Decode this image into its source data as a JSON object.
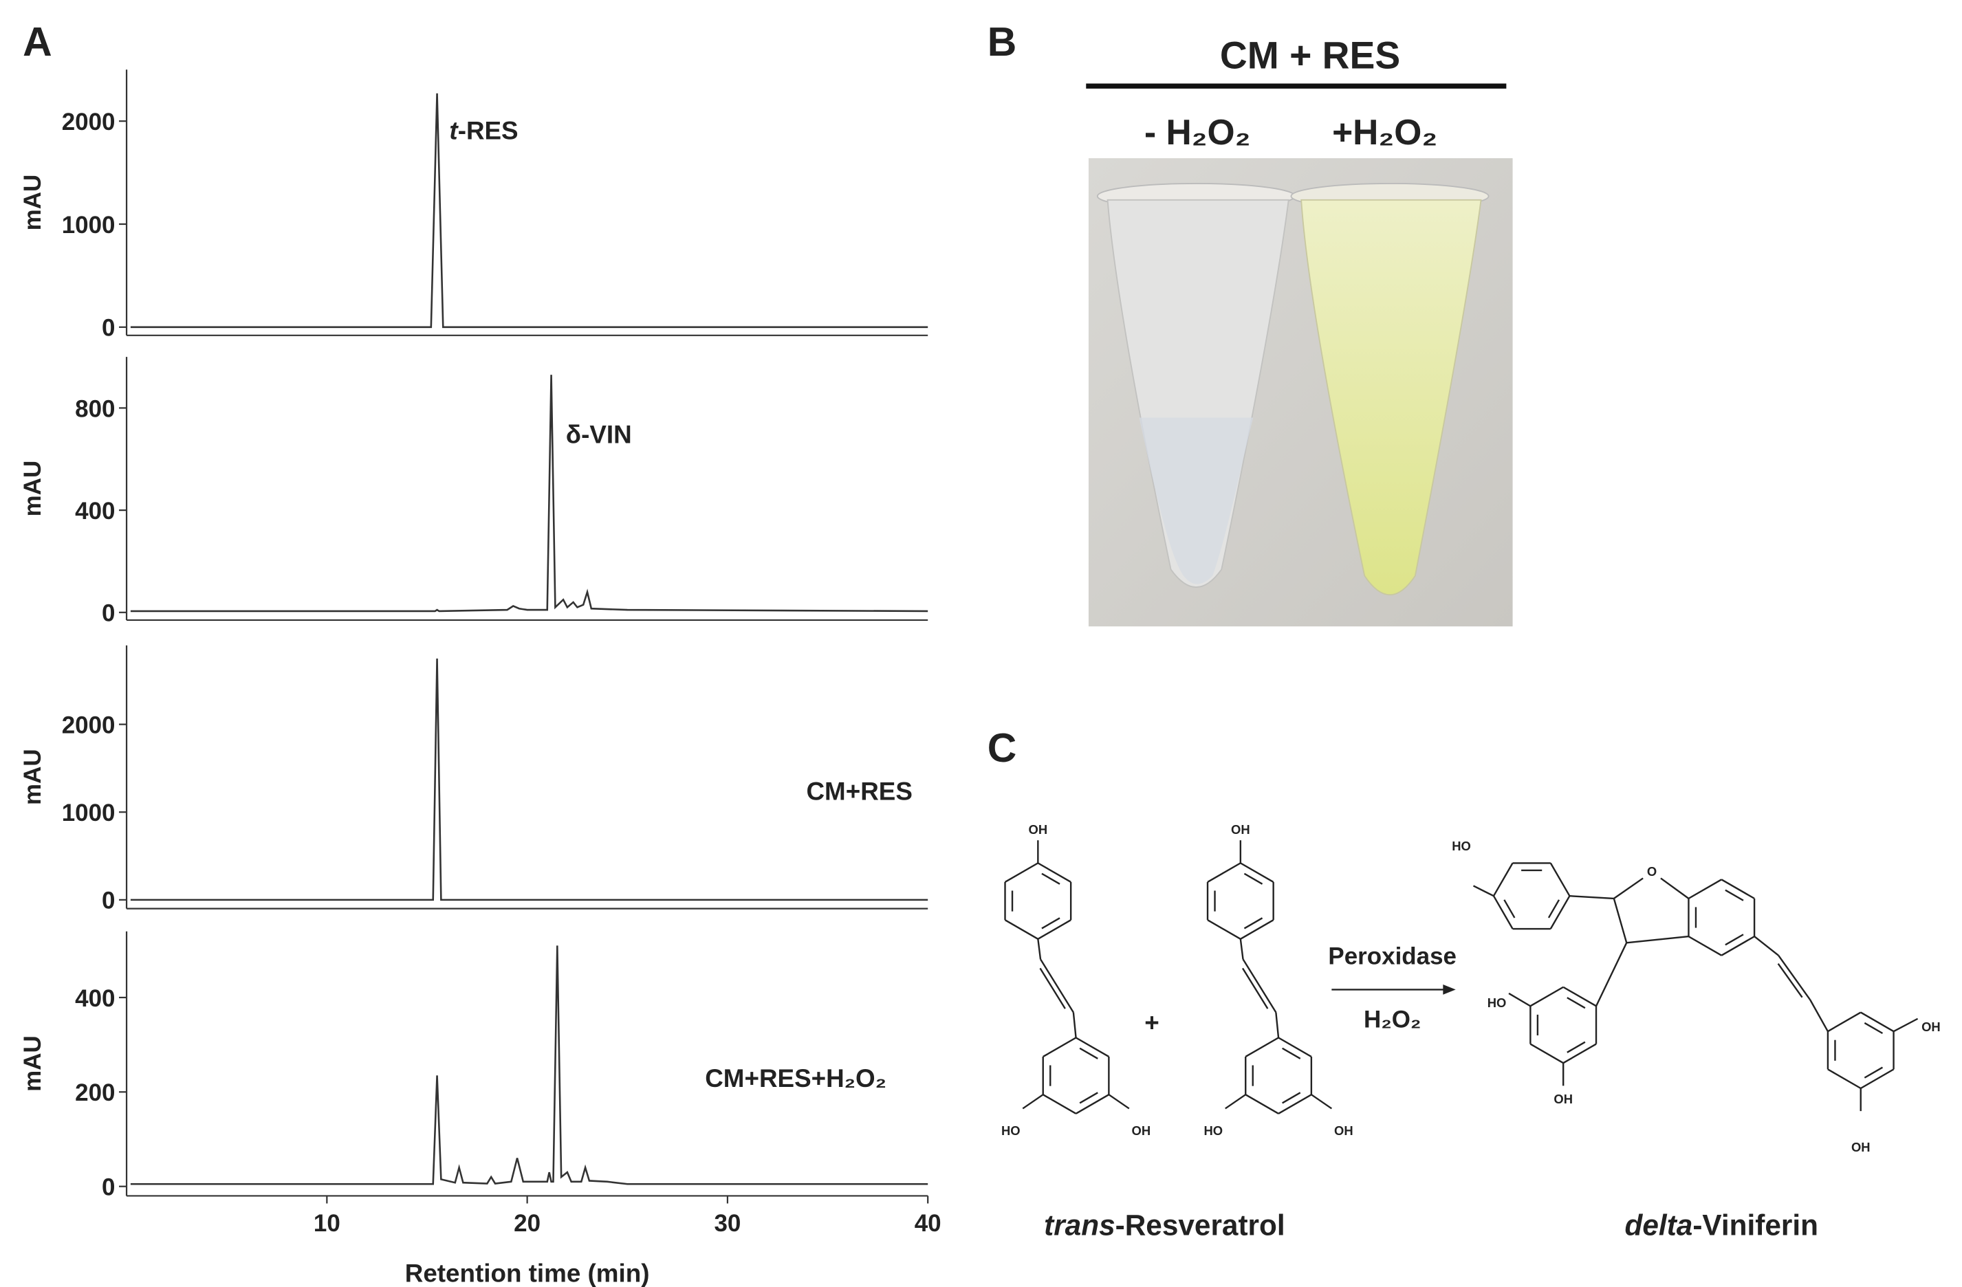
{
  "panel_labels": [
    "A",
    "B",
    "C"
  ],
  "chart_data": [
    {
      "type": "line",
      "ylabel": "mAU",
      "annotation": [
        {
          "text": "t",
          "italic": true
        },
        {
          "text": "-RES"
        }
      ],
      "x": [
        0.2,
        15.2,
        15.5,
        15.8,
        40
      ],
      "values": [
        0,
        0,
        2270,
        0,
        0
      ],
      "color": "#333333",
      "xlim": [
        0,
        40
      ],
      "ylim": [
        -80,
        2500
      ],
      "yticks": [
        0,
        1000,
        2000
      ]
    },
    {
      "type": "line",
      "ylabel": "mAU",
      "annotation": [
        {
          "text": "δ-VIN"
        }
      ],
      "x": [
        0.2,
        15.4,
        15.5,
        15.6,
        19.0,
        19.3,
        19.6,
        20.0,
        21.0,
        21.2,
        21.4,
        21.8,
        22.0,
        22.3,
        22.5,
        22.8,
        23.0,
        23.2,
        25,
        40
      ],
      "values": [
        5,
        5,
        10,
        5,
        10,
        25,
        15,
        10,
        10,
        930,
        20,
        50,
        20,
        40,
        20,
        30,
        80,
        15,
        10,
        5
      ],
      "color": "#333333",
      "xlim": [
        0,
        40
      ],
      "ylim": [
        -30,
        1000
      ],
      "yticks": [
        0,
        400,
        800
      ]
    },
    {
      "type": "line",
      "ylabel": "mAU",
      "annotation": [
        {
          "text": "CM+RES"
        }
      ],
      "x": [
        0.2,
        15.3,
        15.5,
        15.7,
        40
      ],
      "values": [
        0,
        0,
        2750,
        0,
        0
      ],
      "color": "#333333",
      "xlim": [
        0,
        40
      ],
      "ylim": [
        -100,
        2900
      ],
      "yticks": [
        0,
        1000,
        2000
      ]
    },
    {
      "type": "line",
      "ylabel": "mAU",
      "annotation": [
        {
          "text": "CM+RES+H₂O₂"
        }
      ],
      "x": [
        0.2,
        15.3,
        15.5,
        15.7,
        16.4,
        16.6,
        16.8,
        18.0,
        18.2,
        18.4,
        19.2,
        19.5,
        19.8,
        21.0,
        21.1,
        21.2,
        21.3,
        21.5,
        21.7,
        22.0,
        22.2,
        22.7,
        22.9,
        23.1,
        24,
        25,
        40
      ],
      "values": [
        5,
        5,
        235,
        15,
        8,
        40,
        8,
        6,
        20,
        6,
        10,
        60,
        10,
        10,
        30,
        10,
        10,
        510,
        20,
        30,
        10,
        10,
        40,
        12,
        10,
        5,
        5
      ],
      "color": "#333333",
      "xlim": [
        0,
        40
      ],
      "ylim": [
        -20,
        540
      ],
      "yticks": [
        0,
        200,
        400
      ],
      "xticks": [
        10,
        20,
        30,
        40
      ],
      "xlabel": "Retention time (min)"
    }
  ],
  "panel_b": {
    "title": "CM + RES",
    "conditions": [
      "- H₂O₂",
      "+H₂O₂"
    ]
  },
  "panel_c": {
    "reactant_labels": [
      [
        "OH",
        "HO",
        "OH"
      ],
      [
        "OH",
        "HO",
        "OH"
      ]
    ],
    "plus": "+",
    "enzyme": "Peroxidase",
    "cofactor": "H₂O₂",
    "product_labels": [
      "HO",
      "O",
      "HO",
      "OH",
      "OH",
      "OH"
    ],
    "reactant_name": [
      {
        "text": "trans",
        "italic": true
      },
      {
        "text": "-Resveratrol"
      }
    ],
    "product_name": [
      {
        "text": "delta",
        "italic": true
      },
      {
        "text": "-Viniferin"
      }
    ]
  }
}
